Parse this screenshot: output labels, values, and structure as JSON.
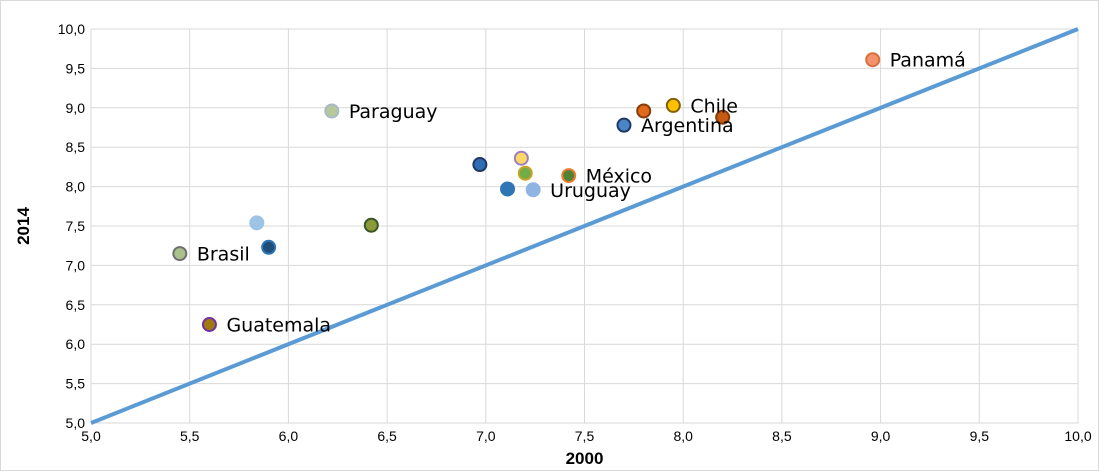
{
  "chart_data": {
    "type": "scatter",
    "xlabel": "2000",
    "ylabel": "2014",
    "xlim": [
      5.0,
      10.0
    ],
    "ylim": [
      5.0,
      10.0
    ],
    "grid": true,
    "x_ticks": [
      "5,0",
      "5,5",
      "6,0",
      "6,5",
      "7,0",
      "7,5",
      "8,0",
      "8,5",
      "9,0",
      "9,5",
      "10,0"
    ],
    "y_ticks": [
      "5,0",
      "5,5",
      "6,0",
      "6,5",
      "7,0",
      "7,5",
      "8,0",
      "8,5",
      "9,0",
      "9,5",
      "10,0"
    ],
    "reference_line": {
      "from": [
        5.0,
        5.0
      ],
      "to": [
        10.0,
        10.0
      ],
      "color": "#5b9bd5"
    },
    "points": [
      {
        "x": 8.96,
        "y": 9.61,
        "label": "Panamá",
        "fill": "#f4926e",
        "stroke": "#d8703e"
      },
      {
        "x": 7.95,
        "y": 9.03,
        "label": "Chile",
        "fill": "#ffc000",
        "stroke": "#7f5f00"
      },
      {
        "x": 7.8,
        "y": 8.96,
        "label": "",
        "fill": "#e06a1c",
        "stroke": "#843c0c"
      },
      {
        "x": 8.2,
        "y": 8.88,
        "label": "",
        "fill": "#c55a11",
        "stroke": "#843c0c"
      },
      {
        "x": 7.7,
        "y": 8.78,
        "label": "Argentina",
        "fill": "#4a86c5",
        "stroke": "#1f3864"
      },
      {
        "x": 6.22,
        "y": 8.96,
        "label": "Paraguay",
        "fill": "#b6c99a",
        "stroke": "#a9b8c8"
      },
      {
        "x": 6.97,
        "y": 8.28,
        "label": "",
        "fill": "#2e6db4",
        "stroke": "#1f3864"
      },
      {
        "x": 7.18,
        "y": 8.36,
        "label": "",
        "fill": "#ffd966",
        "stroke": "#9e7fc2"
      },
      {
        "x": 7.2,
        "y": 8.17,
        "label": "",
        "fill": "#70ad47",
        "stroke": "#c9a227"
      },
      {
        "x": 7.42,
        "y": 8.14,
        "label": "México",
        "fill": "#548235",
        "stroke": "#ed7d31"
      },
      {
        "x": 7.11,
        "y": 7.97,
        "label": "",
        "fill": "#2e75b6",
        "stroke": "#2e75b6"
      },
      {
        "x": 7.24,
        "y": 7.96,
        "label": "Uruguay",
        "fill": "#8fb4e3",
        "stroke": "#8fb4e3"
      },
      {
        "x": 5.84,
        "y": 7.54,
        "label": "",
        "fill": "#9dc3e6",
        "stroke": "#9dc3e6"
      },
      {
        "x": 6.42,
        "y": 7.51,
        "label": "",
        "fill": "#8c9a3a",
        "stroke": "#375623"
      },
      {
        "x": 5.9,
        "y": 7.23,
        "label": "",
        "fill": "#1f4e79",
        "stroke": "#2e75b6"
      },
      {
        "x": 5.45,
        "y": 7.15,
        "label": "Brasil",
        "fill": "#a9c18a",
        "stroke": "#6f6f6f"
      },
      {
        "x": 5.6,
        "y": 6.25,
        "label": "Guatemala",
        "fill": "#a07a10",
        "stroke": "#7030a0"
      }
    ]
  }
}
